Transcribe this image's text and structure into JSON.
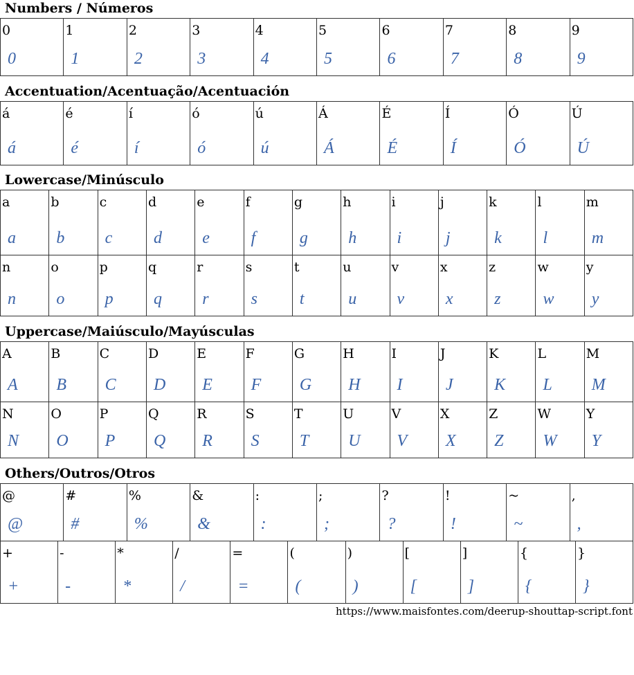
{
  "accent_color": "#3a63a8",
  "sections": [
    {
      "title": "Numbers / Números",
      "rows": [
        [
          "0",
          "1",
          "2",
          "3",
          "4",
          "5",
          "6",
          "7",
          "8",
          "9"
        ]
      ]
    },
    {
      "title": "Accentuation/Acentuação/Acentuación",
      "rows": [
        [
          "á",
          "é",
          "í",
          "ó",
          "ú",
          "Á",
          "É",
          "Í",
          "Ó",
          "Ú"
        ]
      ]
    },
    {
      "title": "Lowercase/Minúsculo",
      "rows": [
        [
          "a",
          "b",
          "c",
          "d",
          "e",
          "f",
          "g",
          "h",
          "i",
          "j",
          "k",
          "l",
          "m"
        ],
        [
          "n",
          "o",
          "p",
          "q",
          "r",
          "s",
          "t",
          "u",
          "v",
          "x",
          "z",
          "w",
          "y"
        ]
      ]
    },
    {
      "title": "Uppercase/Maiúsculo/Mayúsculas",
      "rows": [
        [
          "A",
          "B",
          "C",
          "D",
          "E",
          "F",
          "G",
          "H",
          "I",
          "J",
          "K",
          "L",
          "M"
        ],
        [
          "N",
          "O",
          "P",
          "Q",
          "R",
          "S",
          "T",
          "U",
          "V",
          "X",
          "Z",
          "W",
          "Y"
        ]
      ]
    },
    {
      "title": "Others/Outros/Otros",
      "rows": [
        [
          "@",
          "#",
          "%",
          "&",
          ":",
          ";",
          "?",
          "!",
          "~",
          ","
        ],
        [
          "+",
          "-",
          "*",
          "/",
          "=",
          "(",
          ")",
          "[",
          "]",
          "{",
          "}"
        ]
      ]
    }
  ],
  "footer": "https://www.maisfontes.com/deerup-shouttap-script.font"
}
